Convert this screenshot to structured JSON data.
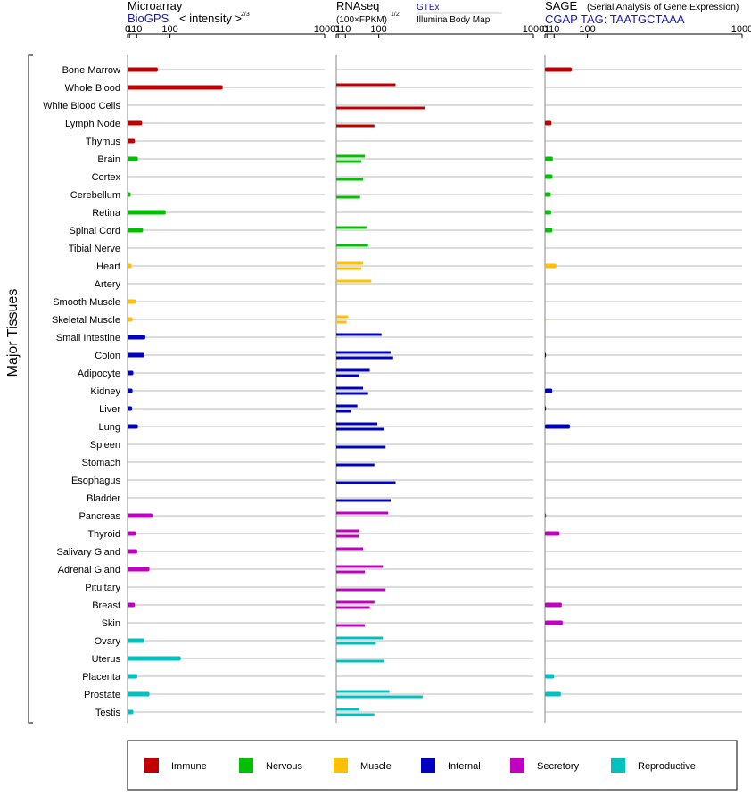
{
  "chart_data": {
    "type": "bar",
    "y_axis_label": "Major Tissues",
    "tissues": [
      "Bone Marrow",
      "Whole Blood",
      "White Blood Cells",
      "Lymph Node",
      "Thymus",
      "Brain",
      "Cortex",
      "Cerebellum",
      "Retina",
      "Spinal Cord",
      "Tibial Nerve",
      "Heart",
      "Artery",
      "Smooth Muscle",
      "Skeletal Muscle",
      "Small Intestine",
      "Colon",
      "Adipocyte",
      "Kidney",
      "Liver",
      "Lung",
      "Spleen",
      "Stomach",
      "Esophagus",
      "Bladder",
      "Pancreas",
      "Thyroid",
      "Salivary Gland",
      "Adrenal Gland",
      "Pituitary",
      "Breast",
      "Skin",
      "Ovary",
      "Uterus",
      "Placenta",
      "Prostate",
      "Testis"
    ],
    "tissue_group_index": [
      0,
      0,
      0,
      0,
      0,
      1,
      1,
      1,
      1,
      1,
      1,
      2,
      2,
      2,
      2,
      3,
      3,
      3,
      3,
      3,
      3,
      3,
      3,
      3,
      3,
      4,
      4,
      4,
      4,
      4,
      4,
      4,
      5,
      5,
      5,
      5,
      5
    ],
    "groups": [
      {
        "name": "Immune",
        "color": "#c00000"
      },
      {
        "name": "Nervous",
        "color": "#00c000"
      },
      {
        "name": "Muscle",
        "color": "#ffc000"
      },
      {
        "name": "Internal",
        "color": "#0000c0"
      },
      {
        "name": "Secretory",
        "color": "#c000c0"
      },
      {
        "name": "Reproductive",
        "color": "#00c0c0"
      }
    ],
    "x_axis": {
      "scale": "power 2/3 (value^(2/3))",
      "ticks": [
        0,
        1,
        10,
        100,
        1000
      ],
      "tick_labels": [
        "0",
        "1",
        "10",
        "100",
        "1000"
      ],
      "range": [
        0,
        1000
      ]
    },
    "panels": [
      {
        "id": "microarray",
        "title": "Microarray",
        "source": "BioGPS",
        "scale_label": "< intensity >",
        "scale_exponent": "2/3",
        "values": [
          60,
          335,
          null,
          20,
          7,
          12,
          null,
          2,
          85,
          22,
          null,
          3,
          null,
          8.5,
          4,
          27,
          25,
          5,
          4,
          3.5,
          12,
          null,
          null,
          null,
          null,
          45,
          8.5,
          11,
          37,
          null,
          7,
          null,
          25,
          140,
          11,
          37,
          5
        ]
      },
      {
        "id": "rnaseq",
        "title": "RNAseq",
        "scale_label": "(100×FPKM)",
        "scale_exponent": "1/2",
        "sources": [
          "GTEx",
          "Illumina Body Map"
        ],
        "values_gtex": [
          null,
          165,
          null,
          null,
          null,
          55,
          null,
          null,
          null,
          60,
          65,
          50,
          75,
          null,
          15,
          110,
          145,
          70,
          50,
          35,
          95,
          null,
          null,
          null,
          null,
          135,
          40,
          50,
          115,
          null,
          85,
          null,
          115,
          null,
          null,
          140,
          40
        ],
        "values_illumina": [
          null,
          null,
          300,
          85,
          null,
          45,
          50,
          42,
          null,
          null,
          null,
          45,
          null,
          null,
          12,
          null,
          155,
          40,
          65,
          20,
          120,
          125,
          85,
          165,
          145,
          null,
          38,
          null,
          55,
          125,
          70,
          55,
          90,
          120,
          null,
          290,
          85
        ]
      },
      {
        "id": "sage",
        "title": "SAGE",
        "subtitle": "(Serial Analysis of Gene Expression)",
        "source": "CGAP TAG: TAATGCTAAA",
        "values": [
          50,
          null,
          null,
          6,
          null,
          8,
          7.5,
          5,
          5.5,
          7,
          null,
          14,
          null,
          null,
          0.02,
          null,
          0.02,
          null,
          7,
          0.02,
          45,
          null,
          null,
          null,
          null,
          0.02,
          20,
          null,
          null,
          null,
          25,
          27,
          null,
          null,
          10,
          23,
          null
        ]
      }
    ],
    "legend_position": "bottom"
  }
}
